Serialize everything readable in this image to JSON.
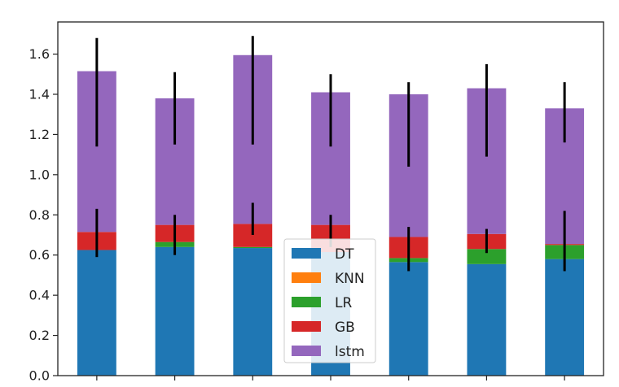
{
  "chart_data": {
    "type": "bar",
    "stacked": true,
    "categories": [
      "",
      "",
      "",
      "",
      "",
      "",
      ""
    ],
    "ylim": [
      0,
      1.76
    ],
    "yticks": [
      0.0,
      0.2,
      0.4,
      0.6,
      0.8,
      1.0,
      1.2,
      1.4,
      1.6
    ],
    "ytick_labels": [
      "0.0",
      "0.2",
      "0.4",
      "0.6",
      "0.8",
      "1.0",
      "1.2",
      "1.4",
      "1.6"
    ],
    "grid": false,
    "legend_position": "bottom-center",
    "series": [
      {
        "name": "DT",
        "color": "#1f77b4",
        "values": [
          0.625,
          0.64,
          0.635,
          0.615,
          0.565,
          0.555,
          0.58
        ]
      },
      {
        "name": "KNN",
        "color": "#ff7f0e",
        "values": [
          0.0,
          0.0,
          0.0,
          0.0,
          0.0,
          0.0,
          0.0
        ]
      },
      {
        "name": "LR",
        "color": "#2ca02c",
        "values": [
          0.0,
          0.025,
          0.005,
          0.0,
          0.02,
          0.075,
          0.07
        ]
      },
      {
        "name": "GB",
        "color": "#d62728",
        "values": [
          0.09,
          0.085,
          0.115,
          0.135,
          0.105,
          0.075,
          0.005
        ]
      },
      {
        "name": "lstm",
        "color": "#9467bd",
        "values": [
          0.8,
          0.63,
          0.84,
          0.66,
          0.71,
          0.725,
          0.675
        ]
      }
    ],
    "error_bars": [
      [
        {
          "center": 0.71,
          "err": 0.12
        },
        {
          "center": 1.41,
          "err": 0.27
        }
      ],
      [
        {
          "center": 0.7,
          "err": 0.1
        },
        {
          "center": 1.33,
          "err": 0.18
        }
      ],
      [
        {
          "center": 0.78,
          "err": 0.08
        },
        {
          "center": 1.42,
          "err": 0.27
        }
      ],
      [
        {
          "center": 0.72,
          "err": 0.08
        },
        {
          "center": 1.32,
          "err": 0.18
        }
      ],
      [
        {
          "center": 0.63,
          "err": 0.11
        },
        {
          "center": 1.25,
          "err": 0.21
        }
      ],
      [
        {
          "center": 0.67,
          "err": 0.06
        },
        {
          "center": 1.32,
          "err": 0.23
        }
      ],
      [
        {
          "center": 0.67,
          "err": 0.15
        },
        {
          "center": 1.31,
          "err": 0.15
        }
      ]
    ]
  }
}
